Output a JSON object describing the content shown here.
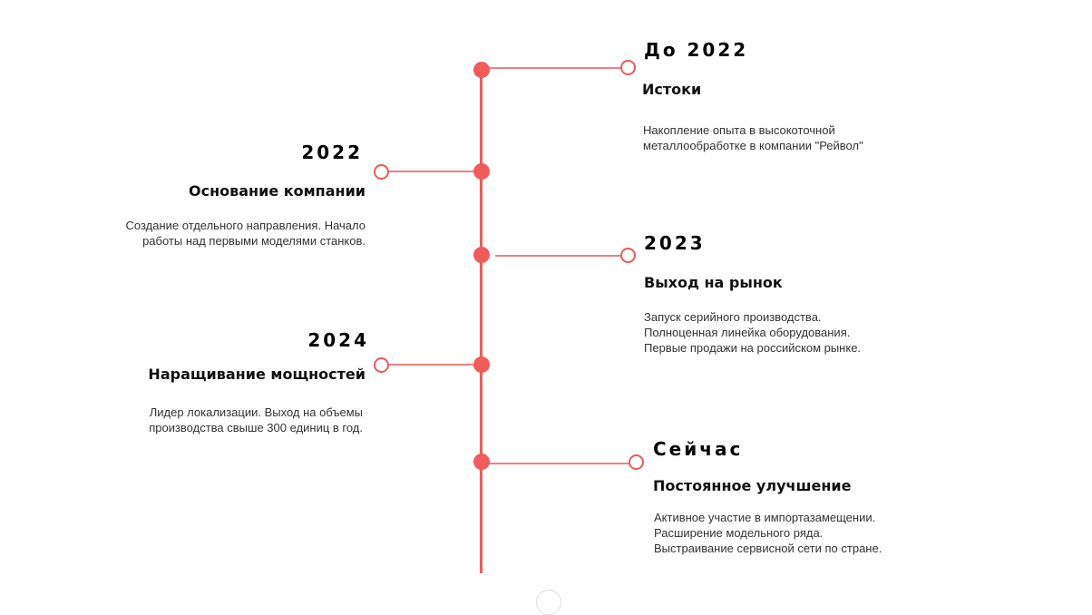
{
  "accent_color": "#f25b5b",
  "timeline": [
    {
      "year": "До 2022",
      "title": "Истоки",
      "description": "Накопление опыта в высокоточной\nметаллообработке в компании \"Рейвол\"",
      "side": "right"
    },
    {
      "year": "2022",
      "title": "Основание компании",
      "description": "Создание отдельного направления. Начало\nработы над первыми моделями станков.",
      "side": "left"
    },
    {
      "year": "2023",
      "title": "Выход на рынок",
      "description": "Запуск серийного производства.\nПолноценная линейка оборудования.\nПервые продажи на российском рынке.",
      "side": "right"
    },
    {
      "year": "2024",
      "title": "Наращивание мощностей",
      "description": "Лидер локализации. Выход на  объемы\nпроизводства свыше 300  единиц в год.",
      "side": "left"
    },
    {
      "year": "Сейчас",
      "title": "Постоянное улучшение",
      "description": "Активное участие в импортазамещении.\nРасширение модельного ряда.\nВыстраивание сервисной сети по стране.",
      "side": "right"
    }
  ]
}
